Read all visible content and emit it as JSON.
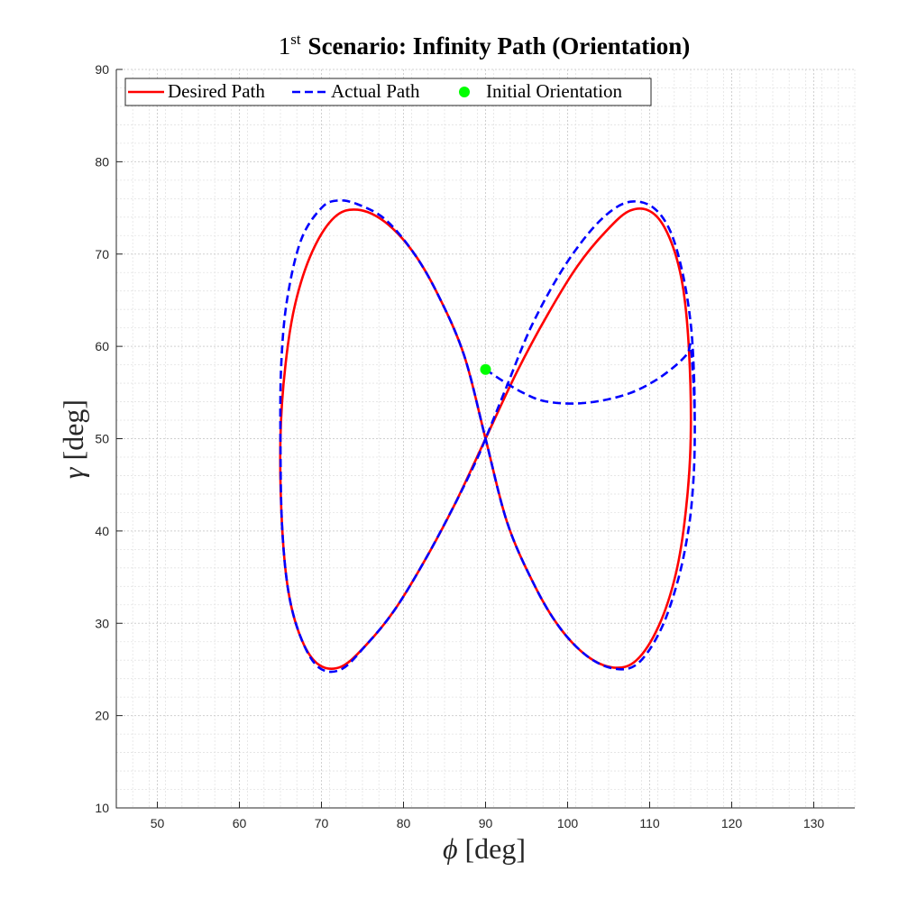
{
  "chart_data": {
    "type": "line",
    "title": {
      "ordinal": "1",
      "ordinal_suffix": "st",
      "text": "Scenario: Infinity Path (Orientation)"
    },
    "xlabel": {
      "symbol": "ϕ",
      "unit": "[deg]"
    },
    "ylabel": {
      "symbol": "γ",
      "unit": "[deg]"
    },
    "xlim": [
      45,
      135
    ],
    "ylim": [
      10,
      90
    ],
    "xticks": [
      50,
      60,
      70,
      80,
      90,
      100,
      110,
      120,
      130
    ],
    "yticks": [
      10,
      20,
      30,
      40,
      50,
      60,
      70,
      80,
      90
    ],
    "grid": true,
    "minor_grid": true,
    "legend_position": "top-left",
    "legend_orientation": "horizontal",
    "series": [
      {
        "name": "Desired Path",
        "style": "solid",
        "color": "#ff0000",
        "x": [
          90.0,
          93.8,
          97.6,
          101.2,
          104.6,
          107.6,
          110.3,
          112.4,
          114.0,
          114.8,
          115.0,
          114.4,
          113.2,
          111.1,
          108.4,
          105.6,
          102.3,
          98.9,
          95.8,
          92.6,
          90.0,
          87.4,
          84.2,
          81.1,
          77.7,
          74.4,
          71.6,
          68.9,
          66.8,
          65.6,
          65.0,
          65.2,
          66.0,
          67.6,
          69.7,
          72.4,
          75.4,
          78.8,
          82.4,
          86.2,
          90.0
        ],
        "y": [
          50.0,
          57.2,
          63.5,
          68.7,
          72.4,
          74.7,
          74.5,
          71.8,
          66.7,
          59.4,
          50.0,
          42.1,
          35.4,
          29.7,
          26.0,
          25.2,
          26.5,
          29.7,
          34.4,
          41.0,
          50.0,
          59.0,
          65.6,
          70.3,
          73.5,
          74.8,
          74.0,
          70.3,
          64.6,
          57.9,
          50.0,
          40.6,
          33.3,
          28.2,
          25.5,
          25.3,
          27.6,
          31.3,
          36.5,
          42.8,
          50.0
        ]
      },
      {
        "name": "Actual Path",
        "style": "dashed",
        "color": "#0000ff",
        "x": [
          90.0,
          92.2,
          94.5,
          97.0,
          100.5,
          104.0,
          107.5,
          110.5,
          113.0,
          114.6,
          115.0,
          115.4,
          115.5,
          115.3,
          114.7,
          113.4,
          111.3,
          108.5,
          105.6,
          102.3,
          98.9,
          95.8,
          92.6,
          90.0,
          87.4,
          84.2,
          81.1,
          77.7,
          74.4,
          72.0,
          70.0,
          67.5,
          65.8,
          65.1,
          65.0,
          65.2,
          66.0,
          67.6,
          69.7,
          72.4,
          75.4,
          78.8,
          82.4,
          86.2,
          88.8,
          90.0,
          92.5,
          95.5,
          99.0,
          102.5,
          105.5,
          108.0,
          110.5,
          112.5,
          114.0,
          115.0,
          115.4,
          115.5
        ],
        "y": [
          57.5,
          56.2,
          55.0,
          54.1,
          53.8,
          54.1,
          54.9,
          56.2,
          57.8,
          59.2,
          60.0,
          55.0,
          50.0,
          45.0,
          40.0,
          34.5,
          29.2,
          25.6,
          25.1,
          26.5,
          29.7,
          34.4,
          41.0,
          50.0,
          59.0,
          65.6,
          70.3,
          73.8,
          75.4,
          75.8,
          75.0,
          71.5,
          65.0,
          58.0,
          50.0,
          40.6,
          33.3,
          28.2,
          25.2,
          25.0,
          27.6,
          31.3,
          36.5,
          42.8,
          47.5,
          50.0,
          55.5,
          62.0,
          67.8,
          72.2,
          74.8,
          75.7,
          75.0,
          72.5,
          68.0,
          62.5,
          57.0,
          52.0
        ]
      }
    ],
    "points": [
      {
        "name": "Initial Orientation",
        "x": 90,
        "y": 57.5,
        "color": "#00ff00"
      }
    ]
  }
}
